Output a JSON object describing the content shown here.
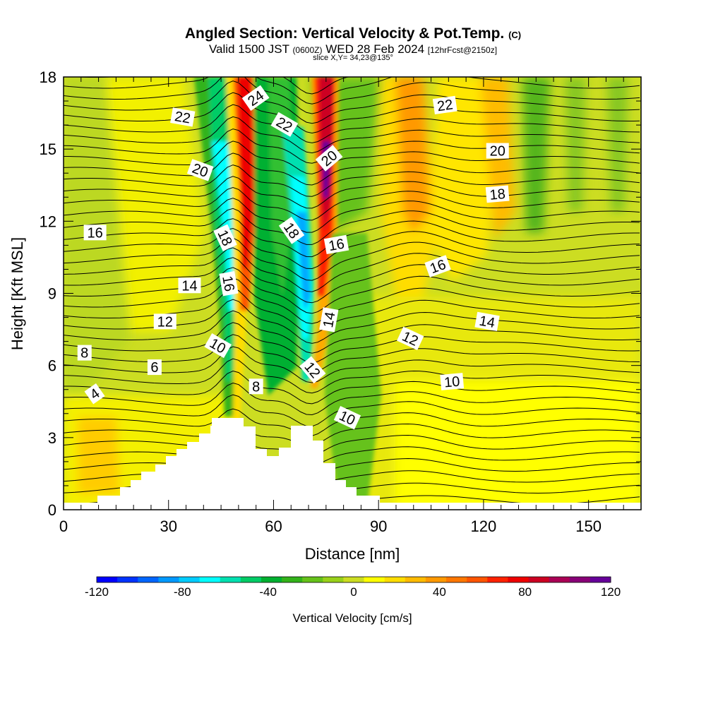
{
  "title": {
    "main": "Angled Section: Vertical Velocity & Pot.Temp.",
    "corner": "(C)",
    "valid_prefix": "Valid 1500 JST",
    "valid_utc": "(0600Z)",
    "valid_date": "WED 28 Feb 2024",
    "forecast": "[12hrFcst@2150z]",
    "slice": "slice X,Y= 34,23@135°"
  },
  "chart_data": {
    "type": "heatmap",
    "xlabel": "Distance [nm]",
    "ylabel": "Height [Kft MSL]",
    "xlim": [
      0,
      165
    ],
    "ylim": [
      0,
      18
    ],
    "x_ticks": [
      0,
      30,
      60,
      90,
      120,
      150
    ],
    "y_ticks": [
      0,
      3,
      6,
      9,
      12,
      15,
      18
    ],
    "colorbar": {
      "label": "Vertical Velocity [cm/s]",
      "min": -120,
      "max": 120,
      "ticks": [
        -120,
        -80,
        -40,
        0,
        40,
        80,
        120
      ],
      "colors": [
        "#0000ff",
        "#0033ff",
        "#0066ff",
        "#0099ff",
        "#00ccff",
        "#00ffff",
        "#00e0b0",
        "#00cc66",
        "#00b030",
        "#33b31a",
        "#66c21a",
        "#99d11a",
        "#ccdd22",
        "#ffff00",
        "#ffdd00",
        "#ffbb00",
        "#ff9900",
        "#ff7700",
        "#ff5500",
        "#ff2200",
        "#ee0000",
        "#cc0022",
        "#aa0055",
        "#880077",
        "#660099"
      ]
    },
    "contour_labels": [
      {
        "text": "24",
        "x": 55,
        "y": 17.1,
        "angle": -35
      },
      {
        "text": "22",
        "x": 34,
        "y": 16.3,
        "angle": 10
      },
      {
        "text": "22",
        "x": 63,
        "y": 16.0,
        "angle": 30
      },
      {
        "text": "22",
        "x": 109,
        "y": 16.8,
        "angle": -8
      },
      {
        "text": "20",
        "x": 39,
        "y": 14.1,
        "angle": 20
      },
      {
        "text": "20",
        "x": 76,
        "y": 14.6,
        "angle": -40
      },
      {
        "text": "20",
        "x": 124,
        "y": 14.9,
        "angle": 0
      },
      {
        "text": "18",
        "x": 124,
        "y": 13.1,
        "angle": -5
      },
      {
        "text": "16",
        "x": 9,
        "y": 11.5,
        "angle": 0
      },
      {
        "text": "18",
        "x": 46,
        "y": 11.3,
        "angle": 65
      },
      {
        "text": "18",
        "x": 65,
        "y": 11.6,
        "angle": 55
      },
      {
        "text": "16",
        "x": 78,
        "y": 11.0,
        "angle": -10
      },
      {
        "text": "16",
        "x": 107,
        "y": 10.1,
        "angle": -20
      },
      {
        "text": "14",
        "x": 36,
        "y": 9.3,
        "angle": 0
      },
      {
        "text": "16",
        "x": 47,
        "y": 9.4,
        "angle": 80
      },
      {
        "text": "14",
        "x": 76,
        "y": 7.9,
        "angle": -80
      },
      {
        "text": "14",
        "x": 121,
        "y": 7.8,
        "angle": 10
      },
      {
        "text": "12",
        "x": 29,
        "y": 7.8,
        "angle": 0
      },
      {
        "text": "12",
        "x": 99,
        "y": 7.1,
        "angle": 25
      },
      {
        "text": "8",
        "x": 6,
        "y": 6.5,
        "angle": 0
      },
      {
        "text": "10",
        "x": 44,
        "y": 6.8,
        "angle": 30
      },
      {
        "text": "6",
        "x": 26,
        "y": 5.9,
        "angle": 0
      },
      {
        "text": "12",
        "x": 71,
        "y": 5.8,
        "angle": 50
      },
      {
        "text": "10",
        "x": 111,
        "y": 5.3,
        "angle": -5
      },
      {
        "text": "8",
        "x": 55,
        "y": 5.1,
        "angle": 0
      },
      {
        "text": "4",
        "x": 9,
        "y": 4.8,
        "angle": -35
      },
      {
        "text": "10",
        "x": 81,
        "y": 3.8,
        "angle": 25
      }
    ]
  }
}
